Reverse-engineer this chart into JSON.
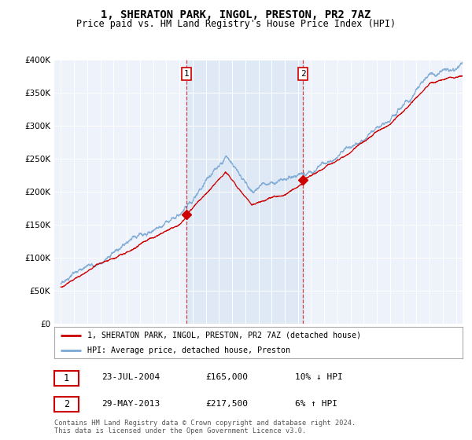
{
  "title": "1, SHERATON PARK, INGOL, PRESTON, PR2 7AZ",
  "subtitle": "Price paid vs. HM Land Registry's House Price Index (HPI)",
  "legend_line1": "1, SHERATON PARK, INGOL, PRESTON, PR2 7AZ (detached house)",
  "legend_line2": "HPI: Average price, detached house, Preston",
  "sale1_date": "23-JUL-2004",
  "sale1_price": "£165,000",
  "sale1_hpi": "10% ↓ HPI",
  "sale1_year": 2004.55,
  "sale1_value": 165000,
  "sale2_date": "29-MAY-2013",
  "sale2_price": "£217,500",
  "sale2_hpi": "6% ↑ HPI",
  "sale2_year": 2013.38,
  "sale2_value": 217500,
  "footer": "Contains HM Land Registry data © Crown copyright and database right 2024.\nThis data is licensed under the Open Government Licence v3.0.",
  "red_color": "#cc0000",
  "blue_color": "#7aa8d4",
  "shade_color": "#dce8f5",
  "background_color": "#eef2fa",
  "plot_bg": "#ffffff",
  "ylim_max": 400000,
  "xlim_start": 1994.5,
  "xlim_end": 2025.5,
  "noise_seed": 17
}
